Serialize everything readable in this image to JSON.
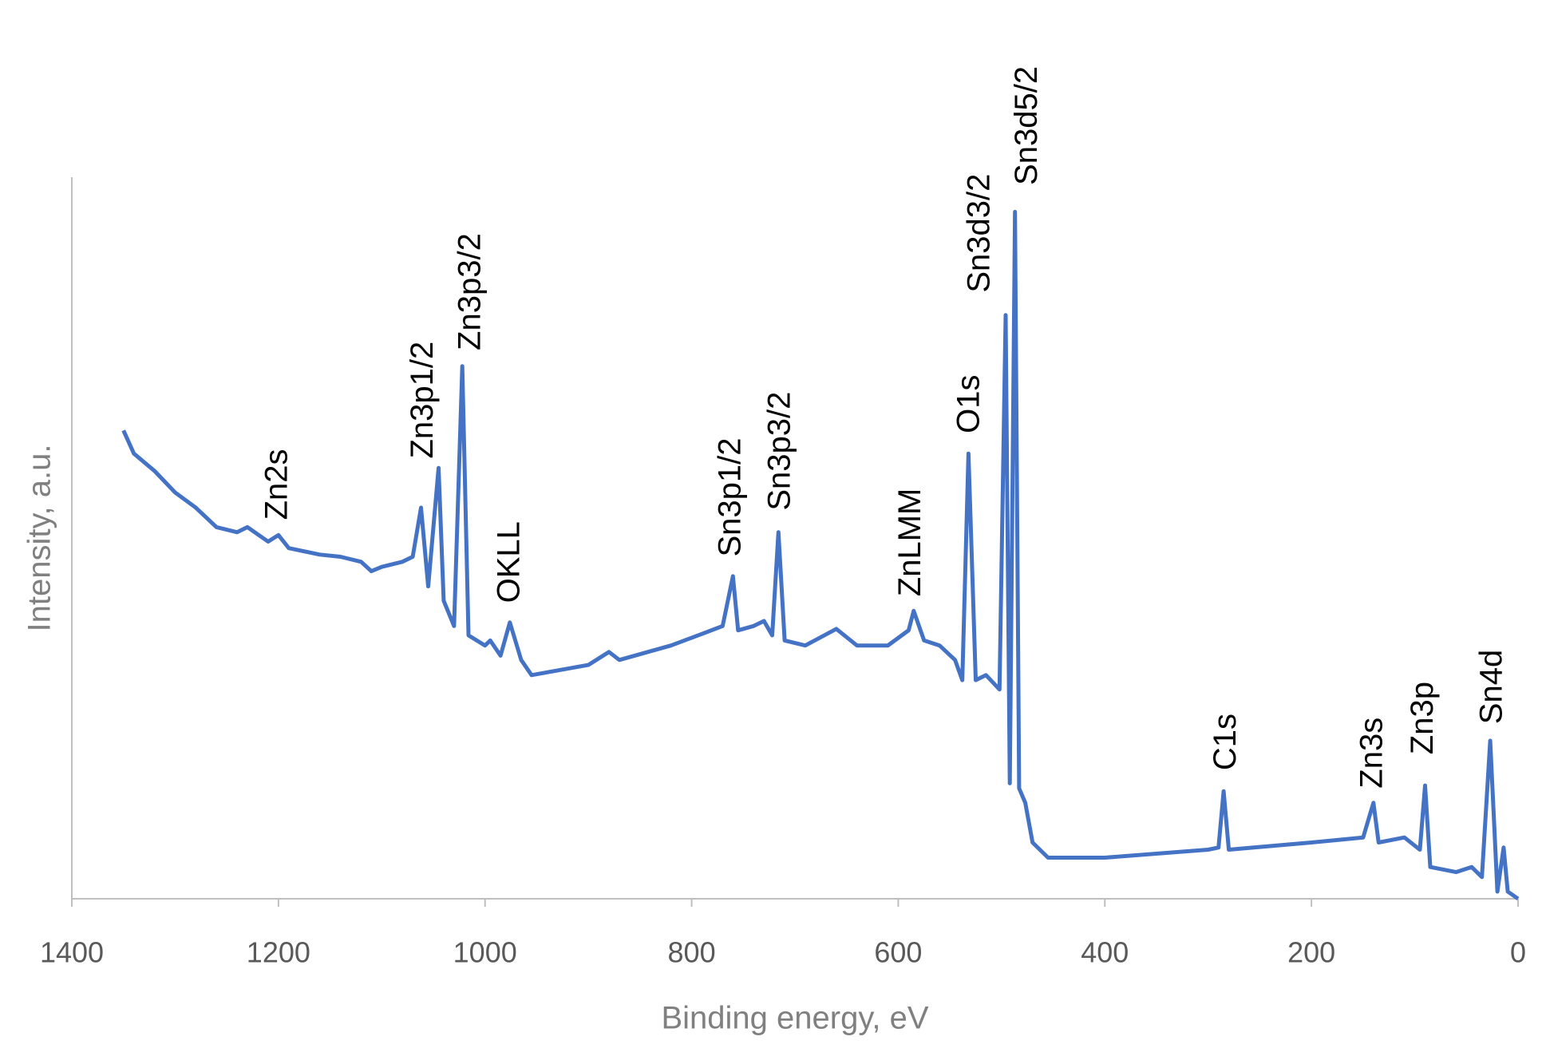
{
  "chart_data": {
    "type": "line",
    "x_label": "Binding energy, eV",
    "y_label": "Intensity, a.u.",
    "color": "#4472c4",
    "xlim": [
      1400,
      0
    ],
    "xticks": [
      1400,
      1200,
      1000,
      800,
      600,
      400,
      200,
      0
    ],
    "ylim": [
      0,
      100
    ],
    "x": [
      1350,
      1340,
      1320,
      1300,
      1280,
      1260,
      1240,
      1230,
      1210,
      1200,
      1190,
      1160,
      1140,
      1120,
      1110,
      1100,
      1080,
      1070,
      1062,
      1055,
      1045,
      1040,
      1030,
      1022,
      1016,
      1000,
      995,
      985,
      976,
      965,
      955,
      900,
      880,
      870,
      820,
      790,
      770,
      760,
      755,
      740,
      730,
      722,
      716,
      710,
      690,
      660,
      640,
      610,
      590,
      585,
      575,
      560,
      545,
      538,
      532,
      525,
      515,
      502,
      496,
      492,
      487,
      483,
      477,
      470,
      455,
      400,
      300,
      290,
      285,
      280,
      200,
      150,
      140,
      135,
      110,
      95,
      90,
      85,
      60,
      45,
      35,
      27,
      20,
      14,
      10,
      0
    ],
    "values": [
      64.9,
      61.7,
      59.3,
      56.3,
      54.2,
      51.5,
      50.8,
      51.5,
      49.5,
      50.4,
      48.6,
      47.7,
      47.4,
      46.7,
      45.4,
      46.0,
      46.7,
      47.4,
      54.2,
      43.3,
      59.7,
      41.3,
      37.8,
      73.8,
      36.5,
      35.1,
      35.8,
      33.7,
      38.3,
      33.1,
      31.0,
      32.4,
      34.2,
      33.1,
      35.1,
      36.7,
      37.8,
      44.7,
      37.2,
      37.8,
      38.5,
      36.5,
      50.8,
      35.8,
      35.1,
      37.4,
      35.1,
      35.1,
      37.2,
      39.9,
      35.8,
      35.1,
      33.1,
      30.3,
      61.7,
      30.3,
      31.0,
      29.0,
      80.9,
      16.0,
      95.2,
      15.3,
      13.3,
      7.8,
      5.7,
      5.7,
      6.8,
      7.1,
      14.9,
      6.8,
      7.8,
      8.5,
      13.3,
      7.8,
      8.5,
      6.8,
      15.7,
      4.4,
      3.7,
      4.4,
      3.0,
      21.9,
      1.0,
      7.1,
      1.0,
      0
    ],
    "annotations": [
      {
        "text": "Zn2s",
        "x": 1200,
        "y": 52.5
      },
      {
        "text": "Zn3p1/2",
        "x": 1059,
        "y": 61
      },
      {
        "text": "Zn3p3/2",
        "x": 1013,
        "y": 76
      },
      {
        "text": "OKLL",
        "x": 975,
        "y": 41
      },
      {
        "text": "Sn3p1/2",
        "x": 761,
        "y": 47.4
      },
      {
        "text": "Sn3p3/2",
        "x": 713,
        "y": 53.8
      },
      {
        "text": "ZnLMM",
        "x": 587,
        "y": 41.9
      },
      {
        "text": "O1s",
        "x": 530,
        "y": 64.5
      },
      {
        "text": "Sn3d3/2",
        "x": 520,
        "y": 84
      },
      {
        "text": "Sn3d5/2",
        "x": 474,
        "y": 98.9
      },
      {
        "text": "C1s",
        "x": 281.5,
        "y": 17.8
      },
      {
        "text": "Zn3s",
        "x": 140,
        "y": 15.3
      },
      {
        "text": "Zn3p",
        "x": 91,
        "y": 20
      },
      {
        "text": "Sn4d",
        "x": 24,
        "y": 24.2
      }
    ]
  }
}
